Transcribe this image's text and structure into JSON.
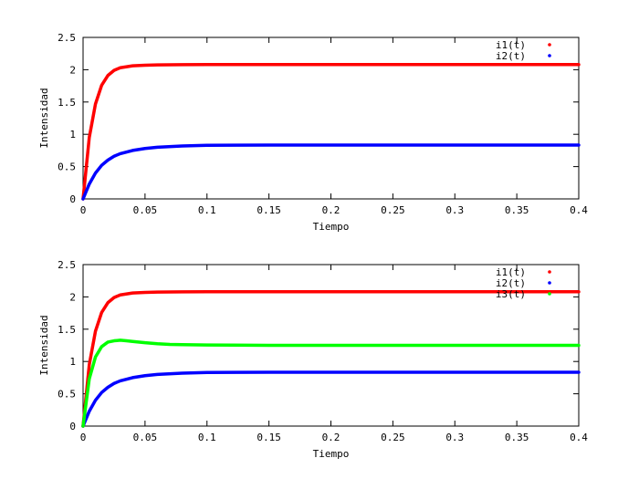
{
  "chart_data": [
    {
      "type": "line",
      "title": "",
      "xlabel": "Tiempo",
      "ylabel": "Intensidad",
      "xlim": [
        0,
        0.4
      ],
      "ylim": [
        0,
        2.5
      ],
      "xticks": [
        "0",
        "0.05",
        "0.1",
        "0.15",
        "0.2",
        "0.25",
        "0.3",
        "0.35",
        "0.4"
      ],
      "yticks": [
        "0",
        "0.5",
        "1",
        "1.5",
        "2",
        "2.5"
      ],
      "grid": false,
      "legend_position": "top-right",
      "series": [
        {
          "name": "i1(t)",
          "color": "#ff0000",
          "x": [
            0,
            0.005,
            0.01,
            0.015,
            0.02,
            0.025,
            0.03,
            0.04,
            0.05,
            0.06,
            0.08,
            0.1,
            0.15,
            0.2,
            0.25,
            0.3,
            0.35,
            0.4
          ],
          "y": [
            0,
            0.95,
            1.47,
            1.76,
            1.91,
            1.99,
            2.03,
            2.06,
            2.07,
            2.075,
            2.078,
            2.08,
            2.08,
            2.08,
            2.08,
            2.08,
            2.08,
            2.08
          ]
        },
        {
          "name": "i2(t)",
          "color": "#0000ff",
          "x": [
            0,
            0.005,
            0.01,
            0.015,
            0.02,
            0.025,
            0.03,
            0.04,
            0.05,
            0.06,
            0.08,
            0.1,
            0.15,
            0.2,
            0.25,
            0.3,
            0.35,
            0.4
          ],
          "y": [
            0,
            0.23,
            0.4,
            0.52,
            0.6,
            0.66,
            0.7,
            0.75,
            0.78,
            0.8,
            0.82,
            0.83,
            0.833,
            0.833,
            0.833,
            0.833,
            0.833,
            0.833
          ]
        }
      ]
    },
    {
      "type": "line",
      "title": "",
      "xlabel": "Tiempo",
      "ylabel": "Intensidad",
      "xlim": [
        0,
        0.4
      ],
      "ylim": [
        0,
        2.5
      ],
      "xticks": [
        "0",
        "0.05",
        "0.1",
        "0.15",
        "0.2",
        "0.25",
        "0.3",
        "0.35",
        "0.4"
      ],
      "yticks": [
        "0",
        "0.5",
        "1",
        "1.5",
        "2",
        "2.5"
      ],
      "grid": false,
      "legend_position": "top-right",
      "series": [
        {
          "name": "i1(t)",
          "color": "#ff0000",
          "x": [
            0,
            0.005,
            0.01,
            0.015,
            0.02,
            0.025,
            0.03,
            0.04,
            0.05,
            0.06,
            0.08,
            0.1,
            0.15,
            0.2,
            0.25,
            0.3,
            0.35,
            0.4
          ],
          "y": [
            0,
            0.95,
            1.47,
            1.76,
            1.91,
            1.99,
            2.03,
            2.06,
            2.07,
            2.075,
            2.078,
            2.08,
            2.08,
            2.08,
            2.08,
            2.08,
            2.08,
            2.08
          ]
        },
        {
          "name": "i2(t)",
          "color": "#0000ff",
          "x": [
            0,
            0.005,
            0.01,
            0.015,
            0.02,
            0.025,
            0.03,
            0.04,
            0.05,
            0.06,
            0.08,
            0.1,
            0.15,
            0.2,
            0.25,
            0.3,
            0.35,
            0.4
          ],
          "y": [
            0,
            0.23,
            0.4,
            0.52,
            0.6,
            0.66,
            0.7,
            0.75,
            0.78,
            0.8,
            0.82,
            0.83,
            0.833,
            0.833,
            0.833,
            0.833,
            0.833,
            0.833
          ]
        },
        {
          "name": "i3(t)",
          "color": "#00ff00",
          "x": [
            0,
            0.005,
            0.01,
            0.015,
            0.02,
            0.025,
            0.03,
            0.035,
            0.04,
            0.05,
            0.06,
            0.07,
            0.08,
            0.1,
            0.15,
            0.2,
            0.25,
            0.3,
            0.35,
            0.4
          ],
          "y": [
            0,
            0.73,
            1.07,
            1.23,
            1.3,
            1.32,
            1.33,
            1.32,
            1.31,
            1.29,
            1.275,
            1.265,
            1.26,
            1.255,
            1.25,
            1.25,
            1.25,
            1.25,
            1.25,
            1.25
          ]
        }
      ]
    }
  ]
}
